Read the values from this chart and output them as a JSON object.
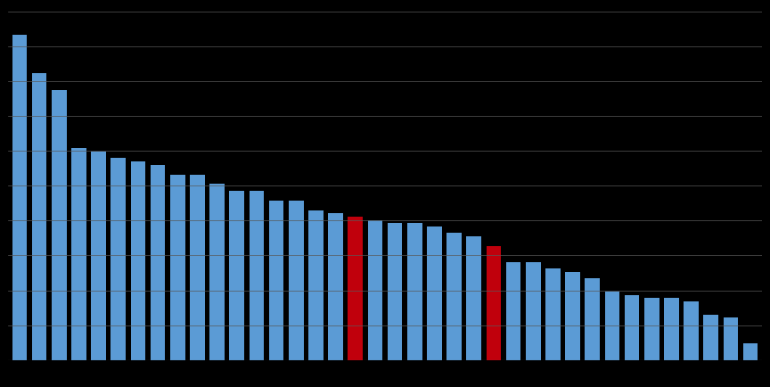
{
  "values": [
    100,
    88,
    83,
    65,
    64,
    62,
    61,
    60,
    57,
    57,
    54,
    52,
    52,
    49,
    49,
    46,
    45,
    44,
    43,
    42,
    42,
    41,
    39,
    38,
    35,
    30,
    30,
    28,
    27,
    25,
    21,
    20,
    19,
    19,
    18,
    14,
    13,
    5
  ],
  "red_indices": [
    17,
    24
  ],
  "blue_color": "#5B9BD5",
  "red_color": "#C0000C",
  "bg_color": "#000000",
  "grid_color": "#595959",
  "ylim": [
    0,
    107
  ],
  "n_gridlines": 10,
  "bar_width": 0.75
}
